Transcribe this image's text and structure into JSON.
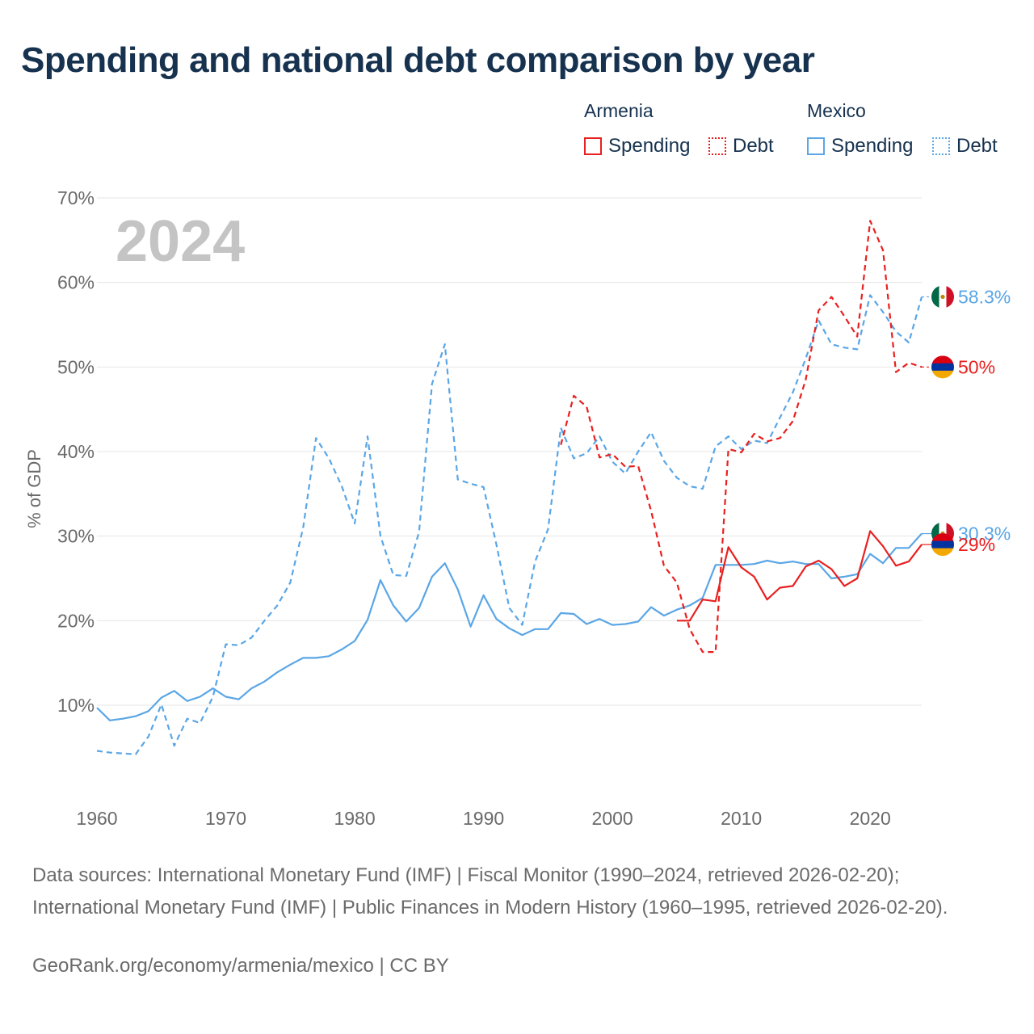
{
  "title": "Spending and national debt comparison by year",
  "legend": {
    "groups": [
      {
        "name": "Armenia",
        "spending_label": "Spending",
        "debt_label": "Debt"
      },
      {
        "name": "Mexico",
        "spending_label": "Spending",
        "debt_label": "Debt"
      }
    ]
  },
  "year_label": "2024",
  "footer": {
    "sources": "Data sources: International Monetary Fund (IMF) | Fiscal Monitor (1990–2024, retrieved 2026-02-20); International Monetary Fund (IMF) | Public Finances in Modern History (1960–1995, retrieved 2026-02-20).",
    "credit": "GeoRank.org/economy/armenia/mexico | CC BY"
  },
  "colors": {
    "armenia": "#e8201f",
    "mexico": "#5aa6e6",
    "title": "#16324f",
    "grid": "#e6e6e6",
    "muted": "#6a6a6a",
    "year": "#c4c4c4"
  },
  "chart_data": {
    "type": "line",
    "title": "Spending and national debt comparison by year",
    "xlabel": "",
    "ylabel": "% of GDP",
    "xlim": [
      1960,
      2024
    ],
    "ylim": [
      0,
      70
    ],
    "x_ticks": [
      1960,
      1970,
      1980,
      1990,
      2000,
      2010,
      2020
    ],
    "y_ticks": [
      10,
      20,
      30,
      40,
      50,
      60,
      70
    ],
    "y_tick_labels": [
      "10%",
      "20%",
      "30%",
      "40%",
      "50%",
      "60%",
      "70%"
    ],
    "series": [
      {
        "name": "Mexico Debt",
        "country": "Mexico",
        "measure": "Debt",
        "style": "dashed",
        "years": [
          1960,
          1961,
          1962,
          1963,
          1964,
          1965,
          1966,
          1967,
          1968,
          1969,
          1970,
          1971,
          1972,
          1973,
          1974,
          1975,
          1976,
          1977,
          1978,
          1979,
          1980,
          1981,
          1982,
          1983,
          1984,
          1985,
          1986,
          1987,
          1988,
          1989,
          1990,
          1991,
          1992,
          1993,
          1994,
          1995,
          1996,
          1997,
          1998,
          1999,
          2000,
          2001,
          2002,
          2003,
          2004,
          2005,
          2006,
          2007,
          2008,
          2009,
          2010,
          2011,
          2012,
          2013,
          2014,
          2015,
          2016,
          2017,
          2018,
          2019,
          2020,
          2021,
          2022,
          2023,
          2024
        ],
        "values": [
          4.6,
          4.4,
          4.3,
          4.2,
          6.3,
          10.1,
          5.2,
          8.4,
          7.9,
          11.0,
          17.2,
          17.1,
          18.0,
          20.0,
          21.8,
          24.5,
          31.0,
          41.6,
          39.2,
          35.9,
          31.5,
          41.8,
          30.0,
          25.4,
          25.3,
          30.5,
          48.0,
          52.7,
          36.7,
          36.2,
          35.8,
          29.0,
          21.5,
          19.5,
          27.0,
          30.8,
          42.8,
          39.2,
          39.8,
          41.8,
          38.8,
          37.4,
          40.0,
          42.3,
          38.9,
          36.9,
          35.9,
          35.6,
          40.6,
          41.8,
          40.3,
          41.3,
          41.0,
          44.0,
          47.0,
          51.0,
          55.5,
          52.7,
          52.3,
          52.1,
          58.5,
          56.5,
          54.2,
          52.9,
          58.3
        ],
        "end_label": "58.3%"
      },
      {
        "name": "Mexico Spending",
        "country": "Mexico",
        "measure": "Spending",
        "style": "solid",
        "years": [
          1960,
          1961,
          1962,
          1963,
          1964,
          1965,
          1966,
          1967,
          1968,
          1969,
          1970,
          1971,
          1972,
          1973,
          1974,
          1975,
          1976,
          1977,
          1978,
          1979,
          1980,
          1981,
          1982,
          1983,
          1984,
          1985,
          1986,
          1987,
          1988,
          1989,
          1990,
          1991,
          1992,
          1993,
          1994,
          1995,
          1996,
          1997,
          1998,
          1999,
          2000,
          2001,
          2002,
          2003,
          2004,
          2005,
          2006,
          2007,
          2008,
          2009,
          2010,
          2011,
          2012,
          2013,
          2014,
          2015,
          2016,
          2017,
          2018,
          2019,
          2020,
          2021,
          2022,
          2023,
          2024
        ],
        "values": [
          9.7,
          8.2,
          8.4,
          8.7,
          9.3,
          10.9,
          11.7,
          10.5,
          11.0,
          12.0,
          11.0,
          10.7,
          12.0,
          12.8,
          13.9,
          14.8,
          15.6,
          15.6,
          15.8,
          16.6,
          17.6,
          20.1,
          24.8,
          21.8,
          19.9,
          21.5,
          25.2,
          26.8,
          23.7,
          19.3,
          23.0,
          20.2,
          19.1,
          18.3,
          19.0,
          19.0,
          20.9,
          20.8,
          19.6,
          20.2,
          19.5,
          19.6,
          19.9,
          21.6,
          20.6,
          21.3,
          21.8,
          22.7,
          26.6,
          26.6,
          26.6,
          26.7,
          27.1,
          26.8,
          27.0,
          26.7,
          26.7,
          25.0,
          25.2,
          25.5,
          27.9,
          26.8,
          28.6,
          28.6,
          30.3
        ],
        "end_label": "30.3%"
      },
      {
        "name": "Armenia Debt",
        "country": "Armenia",
        "measure": "Debt",
        "style": "dashed",
        "years": [
          1996,
          1997,
          1998,
          1999,
          2000,
          2001,
          2002,
          2003,
          2004,
          2005,
          2006,
          2007,
          2008,
          2009,
          2010,
          2011,
          2012,
          2013,
          2014,
          2015,
          2016,
          2017,
          2018,
          2019,
          2020,
          2021,
          2022,
          2023,
          2024
        ],
        "values": [
          40.8,
          46.6,
          45.3,
          39.3,
          39.7,
          38.2,
          38.3,
          33.0,
          26.5,
          24.5,
          19.0,
          16.3,
          16.3,
          40.3,
          39.9,
          42.1,
          41.2,
          41.6,
          43.6,
          48.5,
          56.7,
          58.3,
          56.0,
          53.6,
          67.3,
          63.8,
          49.4,
          50.5,
          50.0
        ],
        "end_label": "50%"
      },
      {
        "name": "Armenia Spending",
        "country": "Armenia",
        "measure": "Spending",
        "style": "solid",
        "years": [
          2005,
          2006,
          2007,
          2008,
          2009,
          2010,
          2011,
          2012,
          2013,
          2014,
          2015,
          2016,
          2017,
          2018,
          2019,
          2020,
          2021,
          2022,
          2023,
          2024
        ],
        "values": [
          20.0,
          20.0,
          22.5,
          22.3,
          28.7,
          26.3,
          25.2,
          22.5,
          23.9,
          24.1,
          26.4,
          27.1,
          26.1,
          24.1,
          25.0,
          30.6,
          28.8,
          26.5,
          27.0,
          29.0
        ],
        "end_label": "29%"
      }
    ]
  }
}
